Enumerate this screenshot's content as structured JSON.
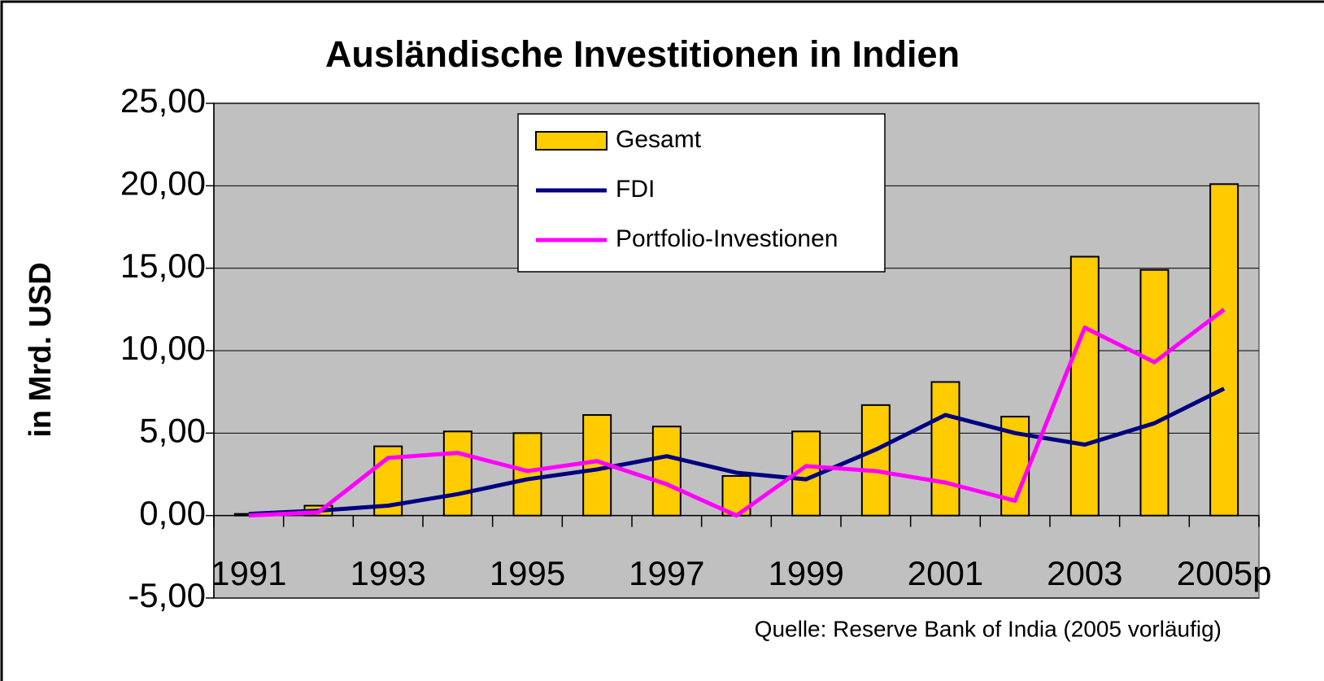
{
  "chart_data": {
    "type": "combo",
    "title": "Ausländische Investitionen in Indien",
    "y_axis_label": "in Mrd. USD",
    "source": "Quelle: Reserve Bank of India (2005 vorläufig)",
    "categories": [
      "1991",
      null,
      "1993",
      null,
      "1995",
      null,
      "1997",
      null,
      "1999",
      null,
      "2001",
      null,
      "2003",
      null,
      "2005p"
    ],
    "series": [
      {
        "name": "Gesamt",
        "type": "bar",
        "color": "#ffcc00",
        "values": [
          0.1,
          0.6,
          4.2,
          5.1,
          5.0,
          6.1,
          5.4,
          2.4,
          5.1,
          6.7,
          8.1,
          6.0,
          15.7,
          14.9,
          20.1
        ]
      },
      {
        "name": "FDI",
        "type": "line",
        "color": "#000080",
        "values": [
          0.1,
          0.3,
          0.6,
          1.3,
          2.2,
          2.8,
          3.6,
          2.6,
          2.2,
          4.0,
          6.1,
          5.0,
          4.3,
          5.6,
          7.7
        ]
      },
      {
        "name": "Portfolio-Investionen",
        "type": "line",
        "color": "#ff00ff",
        "values": [
          0.0,
          0.2,
          3.5,
          3.8,
          2.7,
          3.3,
          1.9,
          0.0,
          3.0,
          2.7,
          2.0,
          0.9,
          11.4,
          9.3,
          12.5
        ]
      }
    ],
    "ylim": [
      -5,
      25
    ],
    "yticks": [
      {
        "value": -5,
        "label": "-5,00"
      },
      {
        "value": 0,
        "label": "0,00"
      },
      {
        "value": 5,
        "label": "5,00"
      },
      {
        "value": 10,
        "label": "10,00"
      },
      {
        "value": 15,
        "label": "15,00"
      },
      {
        "value": 20,
        "label": "20,00"
      },
      {
        "value": 25,
        "label": "25,00"
      }
    ],
    "grid": true,
    "plot_background": "#c0c0c0"
  }
}
